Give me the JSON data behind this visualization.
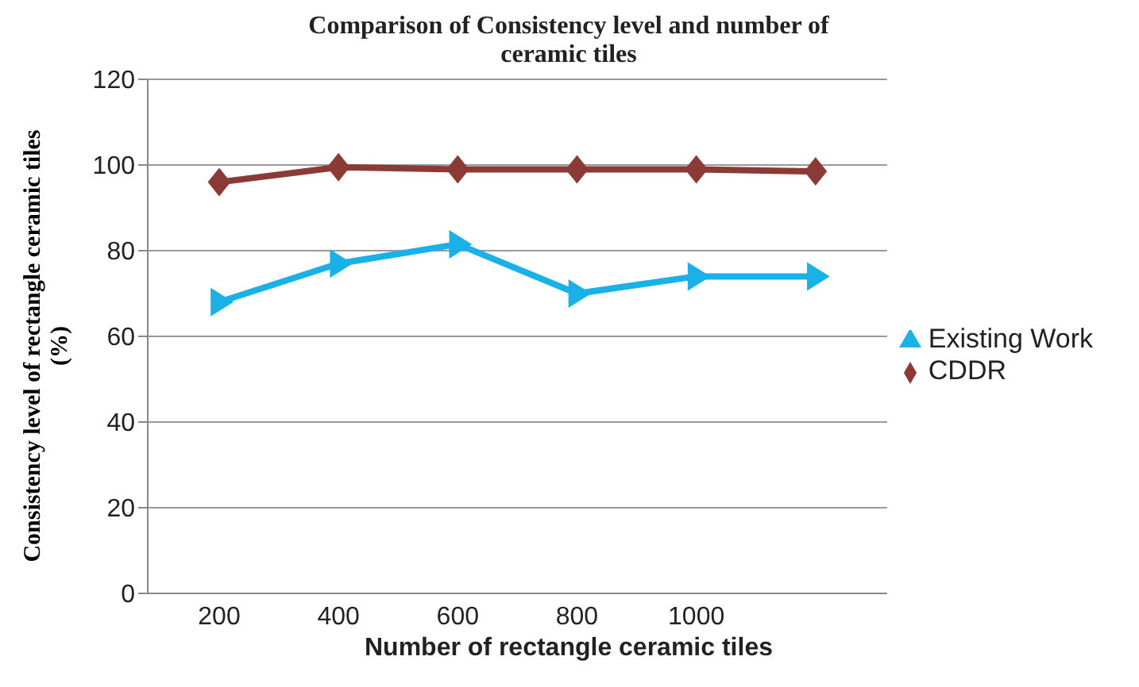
{
  "chart_data": {
    "type": "line",
    "title": "Comparison  of Consistency level and number of ceramic tiles",
    "xlabel": "Number of rectangle ceramic tiles",
    "ylabel": "Consistency level of rectangle ceramic  tiles (%)",
    "categories": [
      "200",
      "400",
      "600",
      "800",
      "1000",
      null
    ],
    "series": [
      {
        "name": "Existing Work",
        "color": "#1ab0e8",
        "marker": "triangle",
        "values": [
          68,
          77,
          81.5,
          70,
          74,
          74
        ]
      },
      {
        "name": "CDDR",
        "color": "#8b3a36",
        "marker": "diamond",
        "values": [
          96,
          99.5,
          99,
          99,
          99,
          98.5
        ]
      }
    ],
    "ylim": [
      0,
      120
    ],
    "yticks": [
      0,
      20,
      40,
      60,
      80,
      100,
      120
    ],
    "grid": "y",
    "legend": "right"
  }
}
